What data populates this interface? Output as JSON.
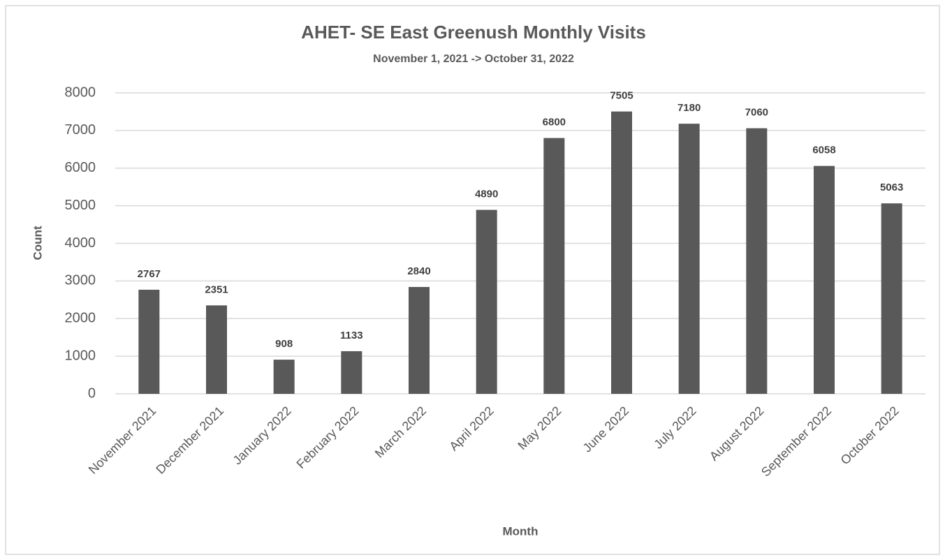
{
  "chart_data": {
    "type": "bar",
    "title": "AHET- SE East Greenush Monthly Visits",
    "subtitle": "November 1, 2021 -> October 31, 2022",
    "x_label": "Month",
    "y_label": "Count",
    "categories": [
      "November 2021",
      "December 2021",
      "January 2022",
      "February 2022",
      "March 2022",
      "April 2022",
      "May 2022",
      "June 2022",
      "July 2022",
      "August 2022",
      "September 2022",
      "October 2022"
    ],
    "values": [
      2767,
      2351,
      908,
      1133,
      2840,
      4890,
      6800,
      7505,
      7180,
      7060,
      6058,
      5063
    ],
    "color": "#595959",
    "ylim": [
      0,
      8000
    ],
    "yticks": [
      0,
      1000,
      2000,
      3000,
      4000,
      5000,
      6000,
      7000,
      8000
    ],
    "grid": true
  }
}
